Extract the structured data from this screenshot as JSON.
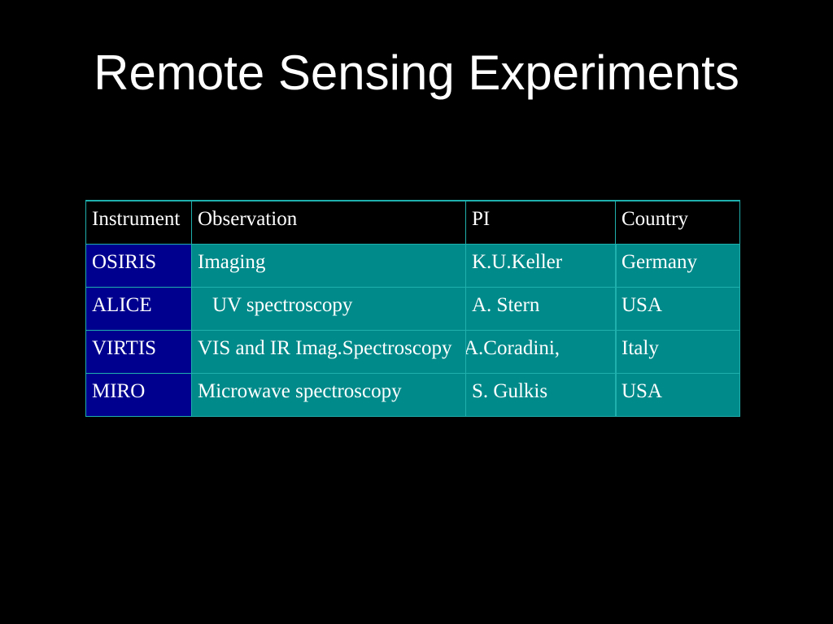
{
  "slide": {
    "title": "Remote Sensing Experiments"
  },
  "table": {
    "headers": [
      "Instrument",
      "Observation",
      "PI",
      "Country"
    ],
    "rows": [
      {
        "instrument": "OSIRIS",
        "observation": "Imaging",
        "pi": "K.U.Keller",
        "country": "Germany"
      },
      {
        "instrument": "ALICE",
        "observation": "UV spectroscopy",
        "pi": "A. Stern",
        "country": "USA"
      },
      {
        "instrument": "VIRTIS",
        "observation": "VIS and IR  Imag.Spectroscopy",
        "pi": "A.Coradini,",
        "country": "Italy"
      },
      {
        "instrument": "MIRO",
        "observation": "Microwave spectroscopy",
        "pi": "S. Gulkis",
        "country": "USA"
      }
    ]
  },
  "colors": {
    "background": "#000000",
    "text": "#ffffff",
    "instrument_cell": "#00008f",
    "data_cell": "#008a8a",
    "border": "#1fb0ad"
  }
}
